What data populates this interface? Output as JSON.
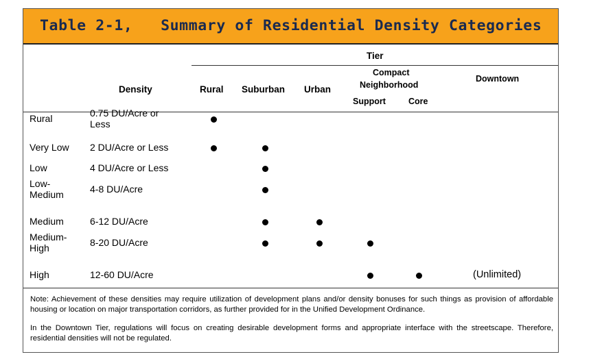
{
  "title": "Table 2-1,   Summary of Residential Density Categories",
  "headers": {
    "density": "Density",
    "tier": "Tier",
    "rural": "Rural",
    "suburban": "Suburban",
    "urban": "Urban",
    "compact_line1": "Compact",
    "compact_line2": "Neighborhood",
    "support": "Support",
    "core": "Core",
    "downtown": "Downtown"
  },
  "rows": [
    {
      "category": [
        "Rural"
      ],
      "density": [
        "0.75 DU/Acre or",
        "Less"
      ],
      "tiers": {
        "rural": true,
        "suburban": false,
        "urban": false,
        "support": false,
        "core": false
      },
      "downtown": ""
    },
    {
      "category": [
        "Very Low"
      ],
      "density": [
        "2 DU/Acre or Less"
      ],
      "tiers": {
        "rural": true,
        "suburban": true,
        "urban": false,
        "support": false,
        "core": false
      },
      "downtown": ""
    },
    {
      "category": [
        "Low"
      ],
      "density": [
        "4 DU/Acre or Less"
      ],
      "tiers": {
        "rural": false,
        "suburban": true,
        "urban": false,
        "support": false,
        "core": false
      },
      "downtown": ""
    },
    {
      "category": [
        "Low-",
        "Medium"
      ],
      "density": [
        "4-8 DU/Acre"
      ],
      "tiers": {
        "rural": false,
        "suburban": true,
        "urban": false,
        "support": false,
        "core": false
      },
      "downtown": ""
    },
    {
      "category": [
        "Medium"
      ],
      "density": [
        "6-12 DU/Acre"
      ],
      "tiers": {
        "rural": false,
        "suburban": true,
        "urban": true,
        "support": false,
        "core": false
      },
      "downtown": ""
    },
    {
      "category": [
        "Medium-",
        "High"
      ],
      "density": [
        "8-20 DU/Acre"
      ],
      "tiers": {
        "rural": false,
        "suburban": true,
        "urban": true,
        "support": true,
        "core": false
      },
      "downtown": ""
    },
    {
      "category": [
        "High"
      ],
      "density": [
        "12-60 DU/Acre"
      ],
      "tiers": {
        "rural": false,
        "suburban": false,
        "urban": false,
        "support": true,
        "core": true
      },
      "downtown": "(Unlimited)"
    }
  ],
  "notes": [
    "Note: Achievement of these densities may require utilization of development plans and/or density bonuses for such things as provision of affordable housing or location on major transportation corridors, as further provided for in the Unified Development Ordinance.",
    "In the Downtown Tier, regulations will focus on creating desirable development forms and appropriate interface with the streetscape. Therefore, residential densities will not be regulated."
  ]
}
